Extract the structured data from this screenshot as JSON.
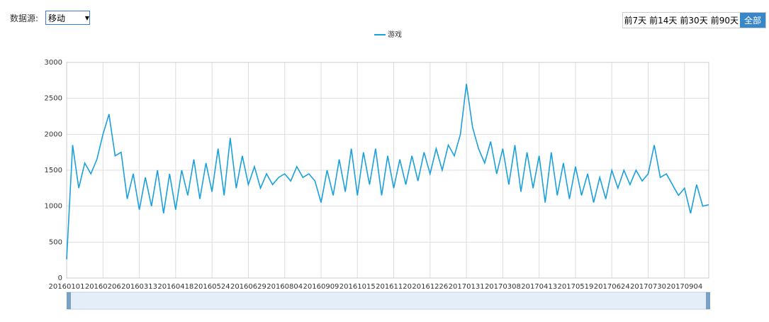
{
  "ui": {
    "source_label": "数据源:",
    "source_value": "移动",
    "range_buttons": [
      "前7天",
      "前14天",
      "前30天",
      "前90天",
      "全部"
    ]
  },
  "chart_data": {
    "type": "line",
    "categories": [
      "20160101",
      null,
      null,
      null,
      null,
      null,
      "20160206",
      null,
      null,
      null,
      null,
      null,
      "20160313",
      null,
      null,
      null,
      null,
      null,
      "20160418",
      null,
      null,
      null,
      null,
      null,
      "20160524",
      null,
      null,
      null,
      null,
      null,
      "20160629",
      null,
      null,
      null,
      null,
      null,
      "20160804",
      null,
      null,
      null,
      null,
      null,
      "20160909",
      null,
      null,
      null,
      null,
      null,
      "20161015",
      null,
      null,
      null,
      null,
      null,
      "20161120",
      null,
      null,
      null,
      null,
      null,
      "20161226",
      null,
      null,
      null,
      null,
      null,
      "20170131",
      null,
      null,
      null,
      null,
      null,
      "20170308",
      null,
      null,
      null,
      null,
      null,
      "20170413",
      null,
      null,
      null,
      null,
      null,
      "20170519",
      null,
      null,
      null,
      null,
      null,
      "20170624",
      null,
      null,
      null,
      null,
      null,
      "20170730",
      null,
      null,
      null,
      null,
      null,
      "20170904",
      null,
      null,
      null,
      null
    ],
    "series": [
      {
        "name": "游戏",
        "color": "#1aa0dc",
        "values": [
          260,
          1850,
          1250,
          1600,
          1450,
          1650,
          2000,
          2280,
          1700,
          1750,
          1100,
          1450,
          950,
          1400,
          1000,
          1500,
          900,
          1450,
          950,
          1500,
          1150,
          1650,
          1100,
          1600,
          1200,
          1800,
          1150,
          1950,
          1250,
          1700,
          1300,
          1550,
          1250,
          1450,
          1300,
          1400,
          1450,
          1350,
          1550,
          1400,
          1450,
          1350,
          1050,
          1500,
          1150,
          1650,
          1200,
          1800,
          1150,
          1750,
          1300,
          1800,
          1150,
          1700,
          1250,
          1650,
          1300,
          1700,
          1350,
          1750,
          1450,
          1800,
          1500,
          1850,
          1700,
          2000,
          2700,
          2100,
          1800,
          1600,
          1900,
          1450,
          1800,
          1300,
          1850,
          1200,
          1750,
          1250,
          1700,
          1050,
          1750,
          1150,
          1600,
          1100,
          1550,
          1150,
          1450,
          1050,
          1400,
          1100,
          1500,
          1250,
          1500,
          1300,
          1500,
          1350,
          1450,
          1850,
          1400,
          1450,
          1300,
          1150,
          1250,
          900,
          1300,
          1000,
          1020
        ]
      }
    ],
    "ylim": [
      0,
      3000
    ],
    "yticks": [
      0,
      500,
      1000,
      1500,
      2000,
      2500,
      3000
    ],
    "grid": true
  }
}
